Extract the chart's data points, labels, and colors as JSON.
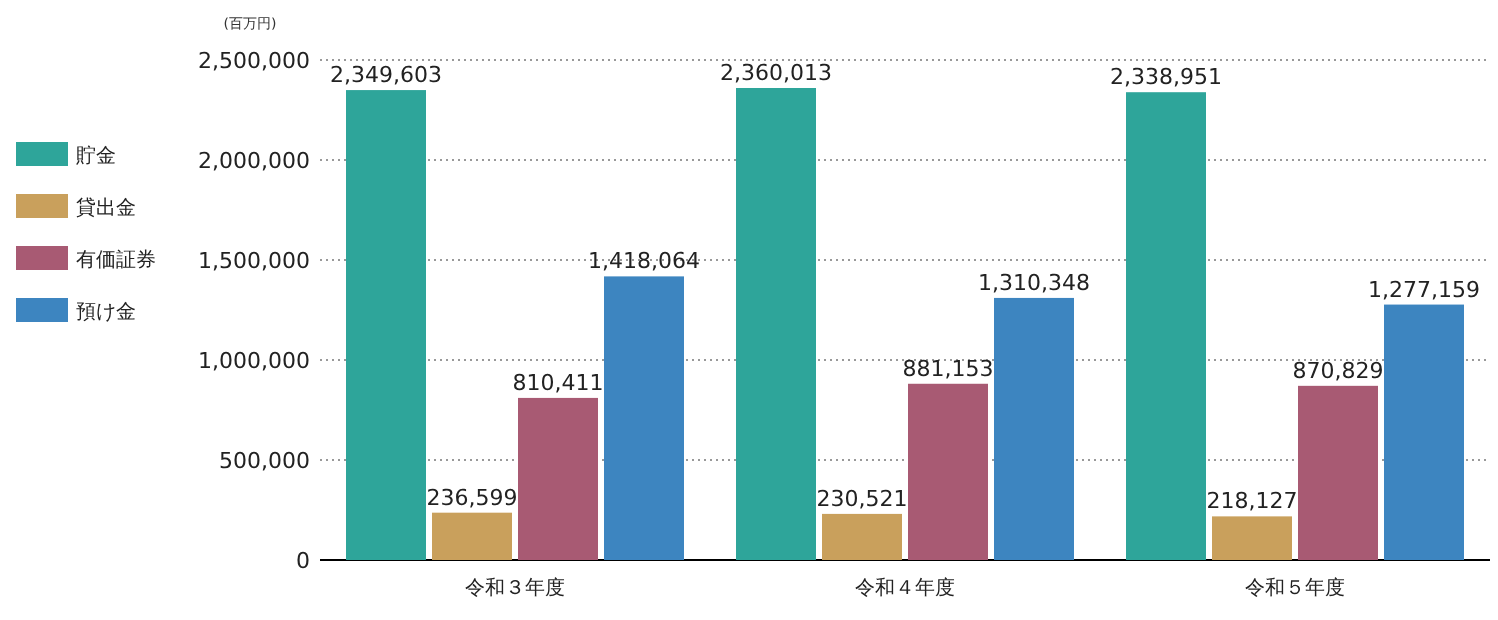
{
  "chart_data": {
    "type": "bar",
    "ylabel": "(百万円)",
    "categories": [
      "令和３年度",
      "令和４年度",
      "令和５年度"
    ],
    "series": [
      {
        "name": "貯金",
        "color": "#2ea59a",
        "values": [
          2349603,
          2360013,
          2338951
        ],
        "value_labels": [
          "2,349,603",
          "2,360,013",
          "2,338,951"
        ]
      },
      {
        "name": "貸出金",
        "color": "#c9a05c",
        "values": [
          236599,
          230521,
          218127
        ],
        "value_labels": [
          "236,599",
          "230,521",
          "218,127"
        ]
      },
      {
        "name": "有価証券",
        "color": "#a85a73",
        "values": [
          810411,
          881153,
          870829
        ],
        "value_labels": [
          "810,411",
          "881,153",
          "870,829"
        ]
      },
      {
        "name": "預け金",
        "color": "#3d85c0",
        "values": [
          1418064,
          1310348,
          1277159
        ],
        "value_labels": [
          "1,418,064",
          "1,310,348",
          "1,277,159"
        ]
      }
    ],
    "ylim": [
      0,
      2500000
    ],
    "yticks": [
      {
        "value": 0,
        "label": "0"
      },
      {
        "value": 500000,
        "label": "500,000"
      },
      {
        "value": 1000000,
        "label": "1,000,000"
      },
      {
        "value": 1500000,
        "label": "1,500,000"
      },
      {
        "value": 2000000,
        "label": "2,000,000"
      },
      {
        "value": 2500000,
        "label": "2,500,000"
      }
    ],
    "grid": "y",
    "legend": "left"
  }
}
